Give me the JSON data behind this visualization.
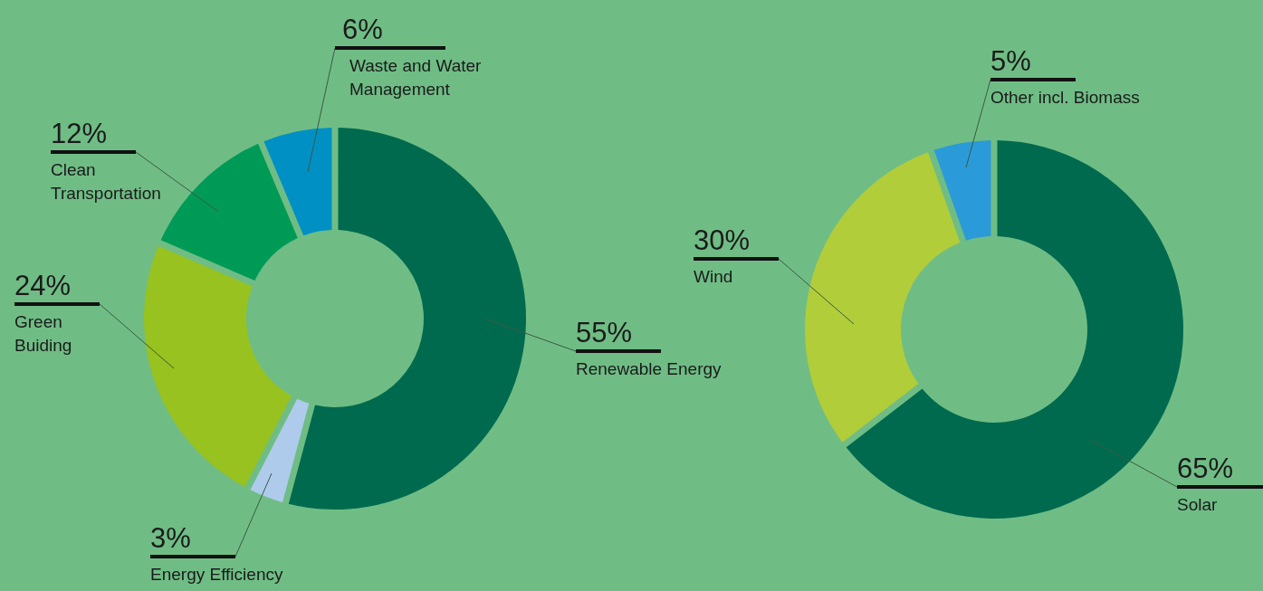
{
  "chart_data": [
    {
      "type": "donut",
      "categories": [
        "Renewable Energy",
        "Energy Efficiency",
        "Green Buiding",
        "Clean Transportation",
        "Waste and Water Management"
      ],
      "values": [
        55,
        3,
        24,
        12,
        6
      ],
      "colors": [
        "#006a4e",
        "#aecbec",
        "#98c21f",
        "#009a57",
        "#0090c4"
      ],
      "value_labels": [
        "55%",
        "3%",
        "24%",
        "12%",
        "6%"
      ]
    },
    {
      "type": "donut",
      "categories": [
        "Solar",
        "Wind",
        "Other incl. Biomass"
      ],
      "values": [
        65,
        30,
        5
      ],
      "colors": [
        "#006a4e",
        "#b1cd3a",
        "#2a9bd8"
      ],
      "value_labels": [
        "65%",
        "30%",
        "5%"
      ]
    }
  ]
}
